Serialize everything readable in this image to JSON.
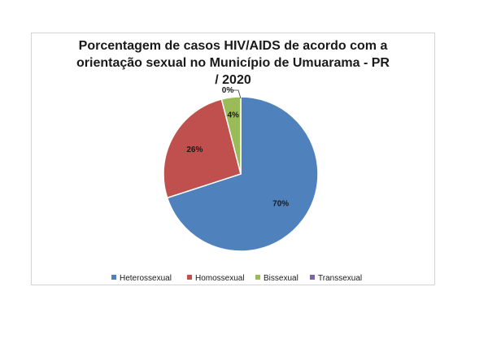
{
  "chart_data": {
    "type": "pie",
    "title_lines": [
      "Porcentagem de casos HIV/AIDS de acordo com a",
      "orientação  sexual no Município de Umuarama - PR",
      "/ 2020"
    ],
    "slices": [
      {
        "name": "Heterossexual",
        "value": 70,
        "label": "70%",
        "color": "#4f81bd"
      },
      {
        "name": "Homossexual",
        "value": 26,
        "label": "26%",
        "color": "#c0504d"
      },
      {
        "name": "Bissexual",
        "value": 4,
        "label": "4%",
        "color": "#9bbb59"
      },
      {
        "name": "Transsexual",
        "value": 0,
        "label": "0%",
        "color": "#8064a2"
      }
    ],
    "legend_position": "bottom"
  }
}
